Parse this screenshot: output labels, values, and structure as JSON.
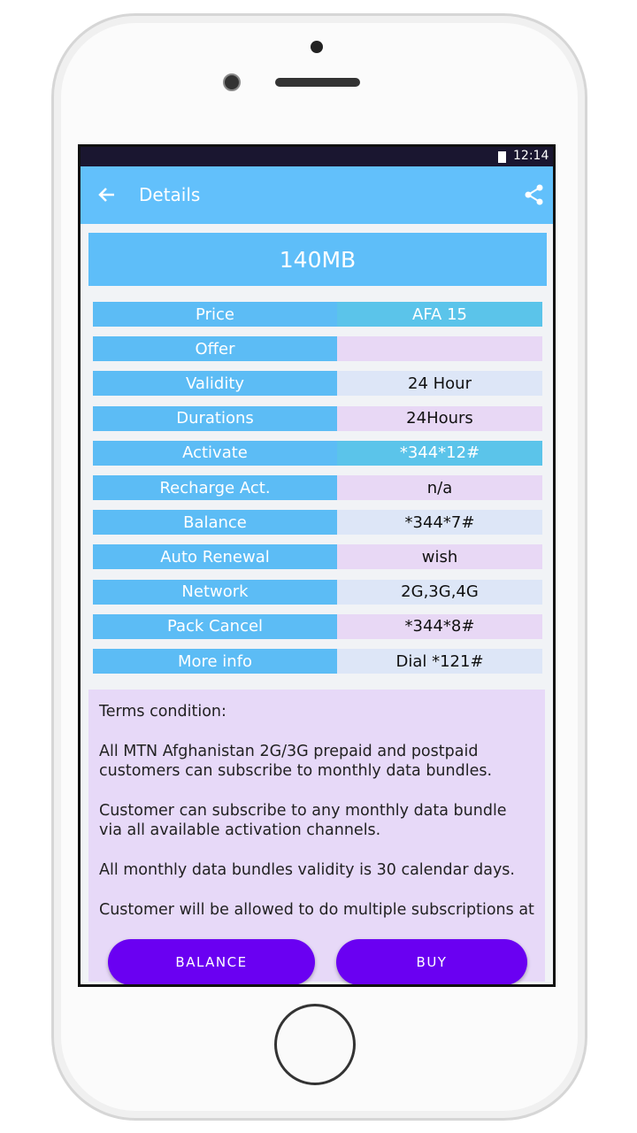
{
  "status_bar": {
    "time": "12:14"
  },
  "app_bar": {
    "title": "Details"
  },
  "heading": "140MB",
  "table": {
    "rows": [
      {
        "label": "Price",
        "value": "AFA 15"
      },
      {
        "label": "Offer"
      },
      {
        "label": "Validity",
        "value": "24 Hour"
      },
      {
        "label": "Durations",
        "value": "24Hours"
      },
      {
        "label": "Activate",
        "value": "*344*12#"
      },
      {
        "label": "Recharge Act.",
        "value": "n/a"
      },
      {
        "label": "Balance",
        "value": "*344*7#"
      },
      {
        "label": "Auto Renewal",
        "value": "wish"
      },
      {
        "label": "Network",
        "value": "2G,3G,4G"
      },
      {
        "label": "Pack Cancel",
        "value": "*344*8#"
      },
      {
        "label": "More info",
        "value": "Dial *121#"
      }
    ]
  },
  "terms": {
    "title": "Terms condition:",
    "paragraphs": [
      "All MTN Afghanistan 2G/3G prepaid and postpaid customers can subscribe to monthly data bundles.",
      "Customer can subscribe to any monthly data bundle via all available activation channels.",
      "All monthly data bundles validity is 30 calendar days.",
      "Customer will be allowed to do multiple subscriptions at"
    ]
  },
  "buttons": [
    "BALANCE",
    "BUY"
  ]
}
